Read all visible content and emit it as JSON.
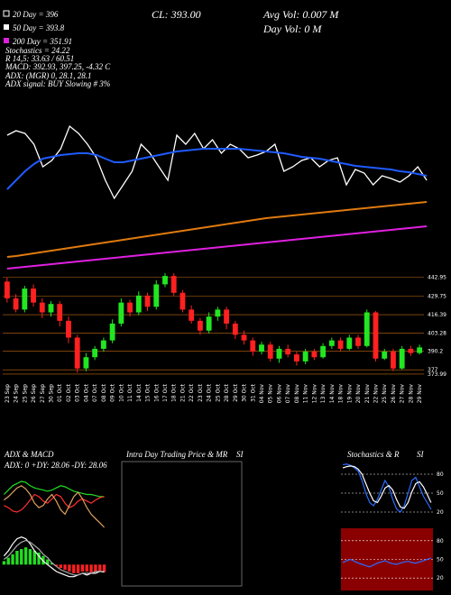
{
  "header": {
    "sma20": "20 Day = 396",
    "sma50": "50 Day = 393.8",
    "sma200": "200 Day = 351.91",
    "stoch": "Stochastics = 24.22",
    "r": "R 14,5: 33.63 / 60.51",
    "macd": "MACD: 392.93, 397.25, -4.32 C",
    "adx": "ADX: (MGR) 0, 28.1, 28.1",
    "adx_signal": "ADX signal: BUY Slowing # 3%",
    "cl": "CL: 393.00",
    "avg_vol": "Avg Vol: 0.007 M",
    "day_vol": "Day Vol: 0 M"
  },
  "chart_data": [
    {
      "type": "candlestick",
      "categories": [
        "23 Sep",
        "24 Sep",
        "25 Sep",
        "26 Sep",
        "27 Sep",
        "30 Sep",
        "01 Oct",
        "02 Oct",
        "03 Oct",
        "04 Oct",
        "07 Oct",
        "08 Oct",
        "09 Oct",
        "10 Oct",
        "11 Oct",
        "14 Oct",
        "15 Oct",
        "16 Oct",
        "17 Oct",
        "18 Oct",
        "21 Oct",
        "22 Oct",
        "23 Oct",
        "24 Oct",
        "25 Oct",
        "28 Oct",
        "29 Oct",
        "30 Oct",
        "31 Oct",
        "04 Nov",
        "05 Nov",
        "06 Nov",
        "07 Nov",
        "08 Nov",
        "11 Nov",
        "12 Nov",
        "13 Nov",
        "14 Nov",
        "18 Nov",
        "19 Nov",
        "20 Nov",
        "21 Nov",
        "22 Nov",
        "25 Nov",
        "26 Nov",
        "27 Nov",
        "28 Nov",
        "29 Nov"
      ],
      "open": [
        440,
        428,
        420,
        435,
        425,
        418,
        424,
        412,
        400,
        378,
        386,
        392,
        398,
        410,
        425,
        418,
        430,
        422,
        438,
        444,
        432,
        420,
        412,
        405,
        415,
        420,
        410,
        402,
        398,
        390,
        395,
        385,
        392,
        388,
        383,
        390,
        386,
        394,
        398,
        392,
        400,
        394,
        418,
        385,
        390,
        378,
        392,
        389
      ],
      "high": [
        443,
        431,
        437,
        438,
        428,
        426,
        426,
        415,
        402,
        389,
        394,
        400,
        413,
        428,
        427,
        433,
        432,
        441,
        446,
        446,
        434,
        423,
        414,
        418,
        422,
        422,
        412,
        405,
        400,
        397,
        397,
        394,
        395,
        390,
        392,
        392,
        396,
        400,
        400,
        402,
        402,
        420,
        419,
        392,
        392,
        394,
        394,
        395
      ],
      "low": [
        425,
        418,
        418,
        422,
        414,
        415,
        408,
        396,
        375,
        376,
        384,
        390,
        396,
        408,
        415,
        416,
        419,
        420,
        436,
        430,
        418,
        410,
        402,
        403,
        412,
        406,
        399,
        395,
        387,
        388,
        383,
        382,
        386,
        380,
        381,
        384,
        385,
        392,
        390,
        391,
        392,
        393,
        383,
        384,
        376,
        377,
        387,
        388
      ],
      "close": [
        428,
        420,
        435,
        425,
        418,
        424,
        412,
        400,
        378,
        386,
        392,
        398,
        410,
        425,
        418,
        430,
        422,
        438,
        444,
        432,
        420,
        412,
        405,
        415,
        420,
        410,
        402,
        398,
        390,
        395,
        385,
        392,
        388,
        383,
        390,
        386,
        394,
        398,
        392,
        400,
        394,
        418,
        385,
        390,
        378,
        392,
        389,
        393
      ],
      "up_color": "#22e622",
      "down_color": "#ff2020",
      "grid_color": "#c46a10",
      "ylim": [
        372,
        446
      ],
      "yticks": [
        373.99,
        377,
        390.2,
        403.28,
        416.39,
        429.75,
        442.95
      ],
      "grid": true
    },
    {
      "type": "line",
      "ylim": [
        340,
        420
      ],
      "series": [
        {
          "color": "#ffffff",
          "values": [
            400,
            402,
            400.8,
            396,
            386,
            388.8,
            394,
            404,
            400.8,
            396,
            390,
            380,
            372,
            378,
            384,
            396,
            392,
            386,
            380,
            400,
            396,
            400.8,
            394,
            398,
            392,
            396,
            394,
            390,
            391.2,
            392.8,
            396,
            384,
            386,
            388.8,
            390,
            386,
            388.8,
            390,
            378,
            384.8,
            383.2,
            378,
            382,
            380.8,
            379.2,
            382,
            386,
            380
          ]
        },
        {
          "color": "#1f5bff",
          "values": [
            376,
            380,
            384,
            387.2,
            389.6,
            390.4,
            391.2,
            391.6,
            392,
            392,
            391.2,
            389.6,
            388,
            388,
            388.8,
            389.6,
            390.4,
            391.2,
            392,
            392.8,
            393.2,
            393.6,
            394,
            394,
            394,
            394,
            394,
            393.6,
            393.2,
            392.8,
            392.4,
            392,
            391.2,
            390.4,
            390,
            389.6,
            388.8,
            388,
            387.2,
            386.4,
            386,
            385.6,
            385.2,
            384.8,
            384,
            383.6,
            382.8,
            382
          ]
        },
        {
          "color": "#e07a10",
          "values": [
            346,
            346.4,
            347,
            347.6,
            348.2,
            348.8,
            349.4,
            350,
            350.6,
            351.2,
            351.8,
            352.4,
            353,
            353.6,
            354.2,
            354.8,
            355.4,
            356,
            356.6,
            357.2,
            357.8,
            358.4,
            359,
            359.6,
            360.2,
            360.8,
            361.4,
            362,
            362.6,
            363.2,
            363.6,
            364,
            364.4,
            364.8,
            365.2,
            365.6,
            366,
            366.4,
            366.8,
            367.2,
            367.6,
            368,
            368.4,
            368.8,
            369.2,
            369.6,
            370,
            370.4
          ]
        },
        {
          "color": "#e020e0",
          "values": [
            340.8,
            341.2,
            341.6,
            342,
            342.4,
            342.8,
            343.2,
            343.6,
            344,
            344.4,
            344.8,
            345.2,
            345.6,
            346,
            346.4,
            346.8,
            347.2,
            347.6,
            348,
            348.4,
            348.8,
            349.2,
            349.6,
            350,
            350.4,
            350.8,
            351.2,
            351.6,
            352,
            352.4,
            352.8,
            353.2,
            353.6,
            354,
            354.4,
            354.8,
            355.2,
            355.6,
            356,
            356.4,
            356.8,
            357.2,
            357.6,
            358,
            358.4,
            358.8,
            359.2,
            359.6
          ]
        }
      ]
    },
    {
      "type": "line",
      "title": "ADX & MACD",
      "subtitle": "ADX: 0 +DY: 28.06 -DY: 28.06",
      "ylim": [
        0,
        60
      ],
      "series": [
        {
          "color": "#22dd22",
          "values": [
            30,
            34,
            38,
            40,
            42,
            41,
            38,
            36,
            35,
            34,
            33,
            34,
            36,
            38,
            37,
            35,
            33,
            32,
            31,
            30,
            30,
            29,
            28,
            28.06
          ]
        },
        {
          "color": "#ff3030",
          "values": [
            20,
            18,
            15,
            14,
            16,
            20,
            25,
            30,
            28,
            24,
            22,
            26,
            30,
            28,
            22,
            18,
            20,
            24,
            26,
            24,
            22,
            25,
            27,
            28.06
          ]
        },
        {
          "color": "#e0a060",
          "values": [
            25,
            28,
            32,
            36,
            38,
            35,
            30,
            22,
            18,
            20,
            26,
            30,
            24,
            16,
            12,
            20,
            28,
            32,
            26,
            18,
            12,
            8,
            4,
            0
          ]
        }
      ]
    },
    {
      "type": "bar",
      "ylim": [
        -15,
        20
      ],
      "values": [
        2,
        4,
        6,
        8,
        9,
        10,
        9,
        8,
        7,
        5,
        3,
        1,
        -1,
        -2,
        -3,
        -4,
        -5,
        -5,
        -4,
        -4,
        -5,
        -4,
        -4,
        -4.32
      ],
      "up_color": "#22dd22",
      "down_color": "#ff2020",
      "series": [
        {
          "color": "#ffffff",
          "values": [
            5,
            8,
            12,
            15,
            16,
            15,
            12,
            8,
            5,
            2,
            0,
            -2,
            -4,
            -5,
            -6,
            -7,
            -7,
            -6,
            -5,
            -6,
            -5,
            -5,
            -4,
            -4.32
          ]
        },
        {
          "color": "#aaaaaa",
          "values": [
            3,
            5,
            8,
            11,
            13,
            14,
            13,
            11,
            9,
            6,
            4,
            1,
            -1,
            -3,
            -4,
            -5,
            -6,
            -6,
            -5,
            -5,
            -5,
            -4,
            -4,
            -4
          ]
        }
      ]
    },
    {
      "type": "empty",
      "title": "Intra Day Trading Price & MR",
      "corner_label": "SI"
    },
    {
      "type": "line",
      "title": "Stochastics & R",
      "corner_label": "SI",
      "ylim": [
        0,
        100
      ],
      "yticks": [
        20,
        50,
        80
      ],
      "grid": true,
      "series": [
        {
          "color": "#2a6cff",
          "values": [
            95,
            96,
            94,
            90,
            85,
            70,
            50,
            35,
            30,
            40,
            55,
            70,
            60,
            40,
            25,
            20,
            30,
            50,
            70,
            75,
            60,
            45,
            35,
            24.22
          ]
        },
        {
          "color": "#ffffff",
          "values": [
            90,
            92,
            93,
            92,
            88,
            80,
            65,
            50,
            38,
            35,
            45,
            58,
            62,
            55,
            40,
            28,
            26,
            35,
            52,
            65,
            68,
            60,
            48,
            35
          ]
        }
      ]
    },
    {
      "type": "line",
      "ylim": [
        0,
        100
      ],
      "yticks": [
        20,
        50,
        80
      ],
      "grid": true,
      "background": "#8a0000",
      "series": [
        {
          "color": "#2a6cff",
          "values": [
            45,
            48,
            50,
            47,
            44,
            42,
            40,
            38,
            41,
            44,
            46,
            48,
            45,
            43,
            42,
            44,
            46,
            47,
            45,
            44,
            46,
            48,
            50,
            52
          ]
        }
      ]
    }
  ]
}
